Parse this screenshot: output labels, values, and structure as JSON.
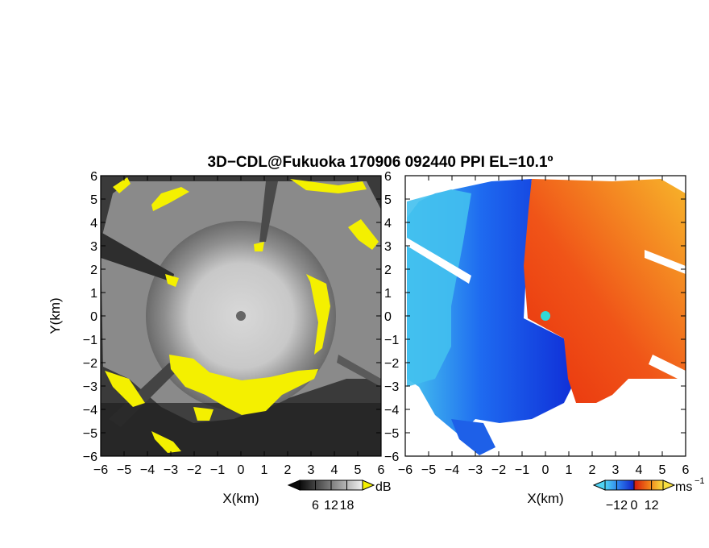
{
  "chart_data": [
    {
      "type": "heatmap",
      "title": "3D−CDL@Fukuoka 170906 092440 PPI EL=10.1º",
      "quantity": "reflectivity",
      "xlabel": "X(km)",
      "ylabel": "Y(km)",
      "xlim": [
        -6,
        6
      ],
      "ylim": [
        -6,
        6
      ],
      "xticks": [
        "−6",
        "−5",
        "−4",
        "−3",
        "−2",
        "−1",
        "0",
        "1",
        "2",
        "3",
        "4",
        "5",
        "6"
      ],
      "yticks": [
        "−6",
        "−5",
        "−4",
        "−3",
        "−2",
        "−1",
        "0",
        "1",
        "2",
        "3",
        "4",
        "5",
        "6"
      ],
      "colorscale": "grayscale, saturated values in yellow",
      "colorbar": {
        "unit": "dB",
        "ticks": [
          "6",
          "12",
          "18"
        ],
        "range": [
          0,
          24
        ]
      },
      "colors": {
        "high": "#f4f000",
        "mid": "#bdbdbd",
        "low": "#262626"
      }
    },
    {
      "type": "heatmap",
      "quantity": "radial velocity",
      "xlabel": "X(km)",
      "xlim": [
        -6,
        6
      ],
      "ylim": [
        -6,
        6
      ],
      "xticks": [
        "−6",
        "−5",
        "−4",
        "−3",
        "−2",
        "−1",
        "0",
        "1",
        "2",
        "3",
        "4",
        "5",
        "6"
      ],
      "yticks": [
        "6",
        "5",
        "4",
        "3",
        "2",
        "1",
        "0",
        "−1",
        "−2",
        "−3",
        "−4",
        "−5",
        "−6"
      ],
      "colorscale": "cyan-blue (negative) to red-orange-yellow (positive)",
      "colorbar": {
        "unit": "ms",
        "unit_exp": "−1",
        "ticks": [
          "−12",
          "0",
          "12"
        ],
        "range": [
          -20,
          20
        ]
      },
      "colors": {
        "neg_far": "#3fc6f0",
        "neg": "#1a4fe0",
        "pos": "#f03c14",
        "pos_far": "#f5a020",
        "radar": "#30d8d8"
      }
    }
  ]
}
